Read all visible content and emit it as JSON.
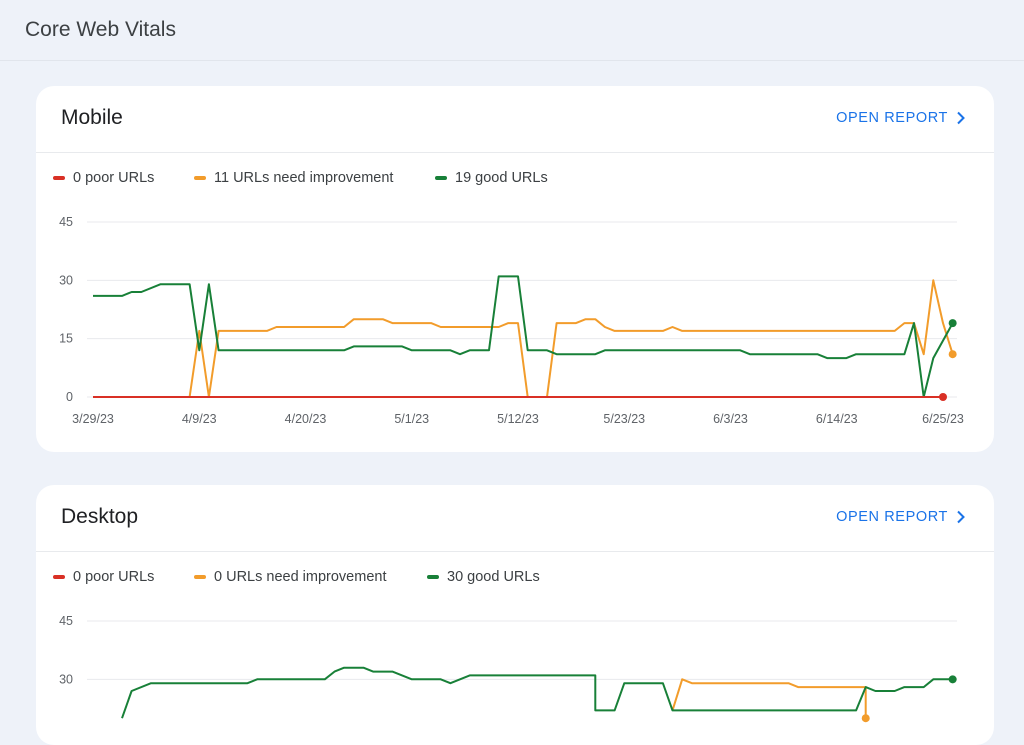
{
  "page": {
    "title": "Core Web Vitals"
  },
  "colors": {
    "poor": "#d93025",
    "needs_improvement": "#f29c2b",
    "good": "#188038",
    "grid": "#e8eaed",
    "accent": "#1a73e8"
  },
  "icons": {
    "open_report": "chevron-right-icon"
  },
  "mobile": {
    "title": "Mobile",
    "open_report_label": "OPEN REPORT",
    "legend": {
      "poor": "0 poor URLs",
      "needs_improvement": "11 URLs need improvement",
      "good": "19 good URLs"
    }
  },
  "desktop": {
    "title": "Desktop",
    "open_report_label": "OPEN REPORT",
    "legend": {
      "poor": "0 poor URLs",
      "needs_improvement": "0 URLs need improvement",
      "good": "30 good URLs"
    }
  },
  "chart_data": [
    {
      "type": "line",
      "yticks": [
        "0",
        "15",
        "30",
        "45"
      ],
      "ylim": [
        0,
        45
      ],
      "x_tick_labels": [
        "3/29/23",
        "4/9/23",
        "4/20/23",
        "5/1/23",
        "5/12/23",
        "5/23/23",
        "6/3/23",
        "6/14/23",
        "6/25/23"
      ],
      "x_range": [
        "2023-03-29",
        "2023-06-25"
      ],
      "grid": true,
      "legend_position": "top-left",
      "series": [
        {
          "name": "0 poor URLs",
          "key": "poor",
          "color": "#d93025",
          "points": [
            [
              "2023-03-29",
              0
            ],
            [
              "2023-06-25",
              0
            ]
          ]
        },
        {
          "name": "11 URLs need improvement",
          "key": "needs_improvement",
          "color": "#f29c2b",
          "points": [
            [
              "2023-03-29",
              0
            ],
            [
              "2023-04-08",
              0
            ],
            [
              "2023-04-09",
              17
            ],
            [
              "2023-04-10",
              0
            ],
            [
              "2023-04-11",
              17
            ],
            [
              "2023-04-16",
              17
            ],
            [
              "2023-04-17",
              18
            ],
            [
              "2023-04-24",
              18
            ],
            [
              "2023-04-25",
              20
            ],
            [
              "2023-04-28",
              20
            ],
            [
              "2023-04-29",
              19
            ],
            [
              "2023-05-03",
              19
            ],
            [
              "2023-05-04",
              18
            ],
            [
              "2023-05-10",
              18
            ],
            [
              "2023-05-11",
              19
            ],
            [
              "2023-05-12",
              19
            ],
            [
              "2023-05-13",
              0
            ],
            [
              "2023-05-15",
              0
            ],
            [
              "2023-05-16",
              19
            ],
            [
              "2023-05-18",
              19
            ],
            [
              "2023-05-19",
              20
            ],
            [
              "2023-05-20",
              20
            ],
            [
              "2023-05-21",
              18
            ],
            [
              "2023-05-22",
              17
            ],
            [
              "2023-05-27",
              17
            ],
            [
              "2023-05-28",
              18
            ],
            [
              "2023-05-29",
              17
            ],
            [
              "2023-06-20",
              17
            ],
            [
              "2023-06-21",
              19
            ],
            [
              "2023-06-22",
              19
            ],
            [
              "2023-06-23",
              11
            ],
            [
              "2023-06-24",
              30
            ],
            [
              "2023-06-25",
              19
            ],
            [
              "2023-06-26",
              11
            ]
          ]
        },
        {
          "name": "19 good URLs",
          "key": "good",
          "color": "#188038",
          "points": [
            [
              "2023-03-29",
              26
            ],
            [
              "2023-04-01",
              26
            ],
            [
              "2023-04-02",
              27
            ],
            [
              "2023-04-03",
              27
            ],
            [
              "2023-04-05",
              29
            ],
            [
              "2023-04-08",
              29
            ],
            [
              "2023-04-09",
              12
            ],
            [
              "2023-04-10",
              29
            ],
            [
              "2023-04-11",
              12
            ],
            [
              "2023-04-17",
              12
            ],
            [
              "2023-04-24",
              12
            ],
            [
              "2023-04-25",
              13
            ],
            [
              "2023-04-30",
              13
            ],
            [
              "2023-05-01",
              12
            ],
            [
              "2023-05-05",
              12
            ],
            [
              "2023-05-06",
              11
            ],
            [
              "2023-05-07",
              12
            ],
            [
              "2023-05-09",
              12
            ],
            [
              "2023-05-10",
              31
            ],
            [
              "2023-05-12",
              31
            ],
            [
              "2023-05-13",
              12
            ],
            [
              "2023-05-15",
              12
            ],
            [
              "2023-05-16",
              11
            ],
            [
              "2023-05-20",
              11
            ],
            [
              "2023-05-21",
              12
            ],
            [
              "2023-06-04",
              12
            ],
            [
              "2023-06-05",
              11
            ],
            [
              "2023-06-12",
              11
            ],
            [
              "2023-06-13",
              10
            ],
            [
              "2023-06-15",
              10
            ],
            [
              "2023-06-16",
              11
            ],
            [
              "2023-06-21",
              11
            ],
            [
              "2023-06-22",
              19
            ],
            [
              "2023-06-23",
              0
            ],
            [
              "2023-06-24",
              10
            ],
            [
              "2023-06-26",
              19
            ]
          ]
        }
      ]
    },
    {
      "type": "line",
      "yticks": [
        "30",
        "45"
      ],
      "ylim": [
        0,
        45
      ],
      "x_range": [
        "2023-03-29",
        "2023-06-25"
      ],
      "grid": true,
      "legend_position": "top-left",
      "series": [
        {
          "name": "0 URLs need improvement",
          "key": "needs_improvement",
          "color": "#f29c2b",
          "points": [
            [
              "2023-05-28",
              22
            ],
            [
              "2023-05-29",
              30
            ],
            [
              "2023-05-30",
              29
            ],
            [
              "2023-06-09",
              29
            ],
            [
              "2023-06-10",
              28
            ],
            [
              "2023-06-17",
              28
            ],
            [
              "2023-06-17",
              20
            ]
          ]
        },
        {
          "name": "30 good URLs",
          "key": "good",
          "color": "#188038",
          "points": [
            [
              "2023-04-01",
              20
            ],
            [
              "2023-04-02",
              27
            ],
            [
              "2023-04-04",
              29
            ],
            [
              "2023-04-14",
              29
            ],
            [
              "2023-04-15",
              30
            ],
            [
              "2023-04-22",
              30
            ],
            [
              "2023-04-23",
              32
            ],
            [
              "2023-04-24",
              33
            ],
            [
              "2023-04-26",
              33
            ],
            [
              "2023-04-27",
              32
            ],
            [
              "2023-04-29",
              32
            ],
            [
              "2023-05-01",
              30
            ],
            [
              "2023-05-04",
              30
            ],
            [
              "2023-05-05",
              29
            ],
            [
              "2023-05-07",
              31
            ],
            [
              "2023-05-20",
              31
            ],
            [
              "2023-05-20",
              22
            ],
            [
              "2023-05-22",
              22
            ],
            [
              "2023-05-23",
              29
            ],
            [
              "2023-05-25",
              29
            ],
            [
              "2023-05-27",
              29
            ],
            [
              "2023-05-28",
              22
            ],
            [
              "2023-06-16",
              22
            ],
            [
              "2023-06-17",
              28
            ],
            [
              "2023-06-18",
              27
            ],
            [
              "2023-06-20",
              27
            ],
            [
              "2023-06-21",
              28
            ],
            [
              "2023-06-23",
              28
            ],
            [
              "2023-06-24",
              30
            ],
            [
              "2023-06-26",
              30
            ]
          ]
        }
      ]
    }
  ]
}
